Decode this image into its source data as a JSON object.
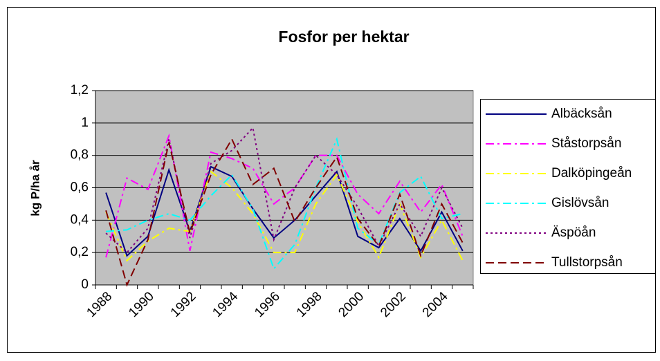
{
  "chart_data": {
    "type": "line",
    "title": "Fosfor per hektar",
    "y_label": "kg P/ha år",
    "categories": [
      "1988",
      null,
      "1990",
      null,
      "1992",
      null,
      "1994",
      null,
      "1996",
      null,
      "1998",
      null,
      "2000",
      null,
      "2002",
      null,
      "2004",
      null
    ],
    "ylim": [
      0,
      1.2
    ],
    "yticks": [
      0,
      {
        "value": 0.2,
        "label": "0,2"
      },
      {
        "value": 0.4,
        "label": "0,4"
      },
      {
        "value": 0.6,
        "label": "0,6"
      },
      {
        "value": 0.8,
        "label": "0,8"
      },
      1,
      {
        "value": 1.2,
        "label": "1,2"
      }
    ],
    "grid": true,
    "legend": "right",
    "series": [
      {
        "name": "Albäcksån",
        "color": "#000080",
        "dash": "solid",
        "values": [
          0.57,
          0.18,
          0.3,
          0.71,
          0.33,
          0.73,
          0.67,
          0.47,
          0.29,
          0.4,
          0.55,
          0.7,
          0.3,
          0.23,
          0.41,
          0.21,
          0.45,
          0.21
        ]
      },
      {
        "name": "Ståstorpsån",
        "color": "#ff00ff",
        "dash": "dashdot",
        "values": [
          0.17,
          0.66,
          0.59,
          0.92,
          0.21,
          0.82,
          0.78,
          0.72,
          0.5,
          0.6,
          0.8,
          0.8,
          0.56,
          0.44,
          0.64,
          0.45,
          0.62,
          0.3
        ]
      },
      {
        "name": "Dalköpingeån",
        "color": "#ffff00",
        "dash": "dashdot",
        "values": [
          0.45,
          0.15,
          0.27,
          0.35,
          0.33,
          0.7,
          0.6,
          0.44,
          0.2,
          0.2,
          0.5,
          0.68,
          0.39,
          0.17,
          0.5,
          0.17,
          0.4,
          0.15
        ]
      },
      {
        "name": "Gislövsån",
        "color": "#00ffff",
        "dash": "dashdot",
        "values": [
          0.33,
          0.34,
          0.4,
          0.44,
          0.4,
          0.55,
          0.68,
          0.47,
          0.1,
          0.25,
          0.6,
          0.9,
          0.35,
          0.25,
          0.57,
          0.67,
          0.41,
          0.44
        ]
      },
      {
        "name": "Äspöån",
        "color": "#800080",
        "dash": "dot",
        "values": [
          0.32,
          0.2,
          0.35,
          0.9,
          0.29,
          0.75,
          0.83,
          0.97,
          0.28,
          0.6,
          0.8,
          0.68,
          0.48,
          0.24,
          0.5,
          0.3,
          0.6,
          0.35
        ]
      },
      {
        "name": "Tullstorpsån",
        "color": "#800000",
        "dash": "dash",
        "values": [
          0.46,
          0.0,
          0.28,
          0.88,
          0.32,
          0.68,
          0.9,
          0.62,
          0.72,
          0.39,
          0.6,
          0.79,
          0.41,
          0.24,
          0.56,
          0.18,
          0.5,
          0.26
        ]
      }
    ]
  }
}
